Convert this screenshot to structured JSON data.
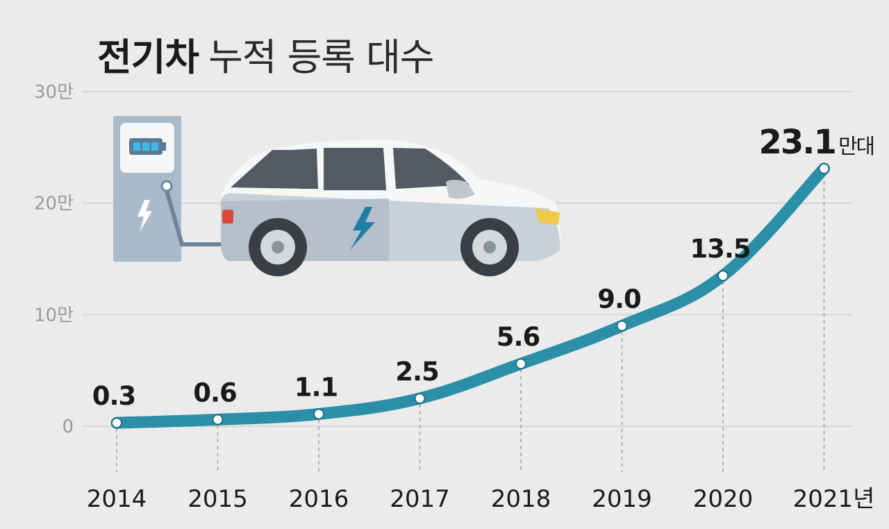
{
  "title": {
    "bold": "전기차",
    "light": "누적 등록 대수"
  },
  "colors": {
    "line": "#2b8fa8",
    "grid": "#d6d6d6",
    "background": "#ebebeb"
  },
  "illustration": "electric-car-charging-station",
  "chart_data": {
    "type": "line",
    "categories": [
      "2014",
      "2015",
      "2016",
      "2017",
      "2018",
      "2019",
      "2020",
      "2021"
    ],
    "x_unit_suffix": "년",
    "values": [
      0.3,
      0.6,
      1.1,
      2.5,
      5.6,
      9.0,
      13.5,
      23.1
    ],
    "data_labels": [
      "0.3",
      "0.6",
      "1.1",
      "2.5",
      "5.6",
      "9.0",
      "13.5",
      "23.1"
    ],
    "last_label_unit": "만대",
    "ylim": [
      0,
      30
    ],
    "yticks": [
      0,
      10,
      20,
      30
    ],
    "ytick_labels": [
      "0",
      "10만",
      "20만",
      "30만"
    ],
    "grid": true
  }
}
